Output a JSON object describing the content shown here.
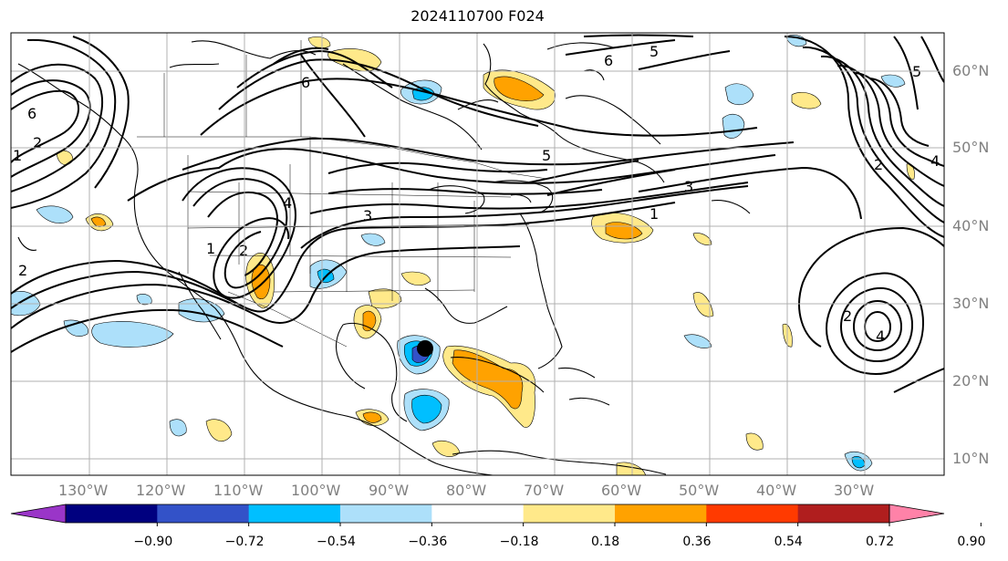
{
  "title": "2024110700 F024",
  "longitude_labels": [
    "130°W",
    "120°W",
    "110°W",
    "100°W",
    "90°W",
    "80°W",
    "70°W",
    "60°W",
    "50°W",
    "40°W",
    "30°W"
  ],
  "latitude_labels": [
    "60°N",
    "50°N",
    "40°N",
    "30°N",
    "20°N",
    "10°N"
  ],
  "contour_labels": [
    "5",
    "6",
    "6",
    "5",
    "3",
    "1",
    "4",
    "3",
    "1",
    "2",
    "2",
    "4",
    "5",
    "2",
    "4",
    "6",
    "2",
    "1",
    "2"
  ],
  "colorbar": {
    "ticks": [
      "−0.90",
      "−0.72",
      "−0.54",
      "−0.36",
      "−0.18",
      "0.18",
      "0.36",
      "0.54",
      "0.72",
      "0.90"
    ],
    "colors": [
      "#9a35c8",
      "#00007f",
      "#3352c8",
      "#00bfff",
      "#ade0fa",
      "#ffffff",
      "#ffe98a",
      "#ffa200",
      "#ff3a00",
      "#b01e1e",
      "#ff82a8"
    ]
  },
  "colors": {
    "negative_light": "#ade0fa",
    "negative_mid": "#00bfff",
    "negative_dark": "#3352c8",
    "positive_light": "#ffe98a",
    "positive_mid": "#ffa200",
    "marker": "#000000"
  }
}
